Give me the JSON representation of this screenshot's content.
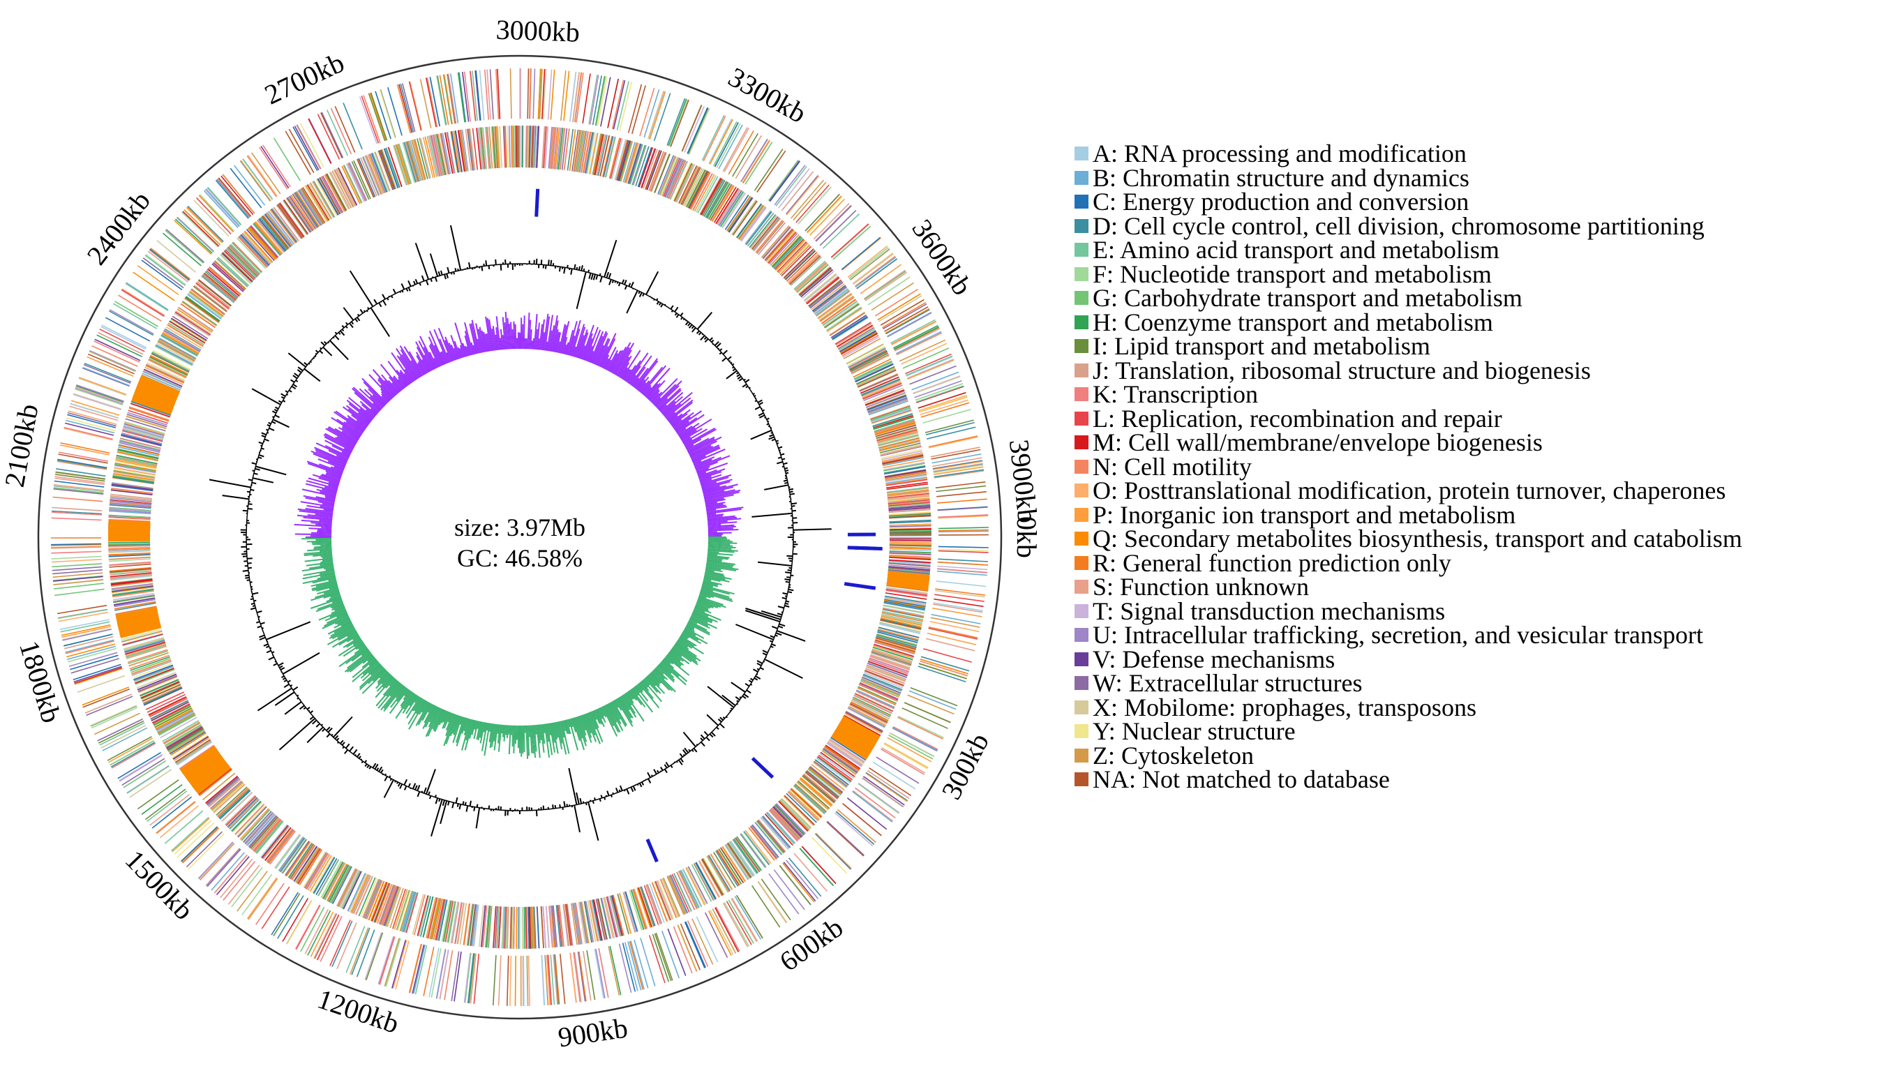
{
  "figure": {
    "genome_size_label": "size: 3.97Mb",
    "gc_label": "GC: 46.58%"
  },
  "axis": {
    "ticks": [
      {
        "kb": 0,
        "label": "0kb"
      },
      {
        "kb": 300,
        "label": "300kb"
      },
      {
        "kb": 600,
        "label": "600kb"
      },
      {
        "kb": 900,
        "label": "900kb"
      },
      {
        "kb": 1200,
        "label": "1200kb"
      },
      {
        "kb": 1500,
        "label": "1500kb"
      },
      {
        "kb": 1800,
        "label": "1800kb"
      },
      {
        "kb": 2100,
        "label": "2100kb"
      },
      {
        "kb": 2400,
        "label": "2400kb"
      },
      {
        "kb": 2700,
        "label": "2700kb"
      },
      {
        "kb": 3000,
        "label": "3000kb"
      },
      {
        "kb": 3300,
        "label": "3300kb"
      },
      {
        "kb": 3600,
        "label": "3600kb"
      },
      {
        "kb": 3900,
        "label": "3900kb"
      }
    ]
  },
  "colors": {
    "gc_skew_positive": "#9b30ff",
    "gc_skew_negative": "#3cb371",
    "gc_content": "#000000",
    "rrna": "#1a1acd",
    "axis": "#333333"
  },
  "legend": [
    {
      "code": "A",
      "label": "A: RNA processing and modification",
      "color": "#a6cee3"
    },
    {
      "code": "B",
      "label": "B: Chromatin structure and dynamics",
      "color": "#6baed6"
    },
    {
      "code": "C",
      "label": "C: Energy production and conversion",
      "color": "#2171b5"
    },
    {
      "code": "D",
      "label": "D: Cell cycle control, cell division, chromosome partitioning",
      "color": "#3a8fa0"
    },
    {
      "code": "E",
      "label": "E: Amino acid transport and metabolism",
      "color": "#74c69d"
    },
    {
      "code": "F",
      "label": "F: Nucleotide transport and metabolism",
      "color": "#a1d99b"
    },
    {
      "code": "G",
      "label": "G: Carbohydrate transport and metabolism",
      "color": "#74c476"
    },
    {
      "code": "H",
      "label": "H: Coenzyme transport and metabolism",
      "color": "#31a354"
    },
    {
      "code": "I",
      "label": "I: Lipid transport and metabolism",
      "color": "#6b8e3a"
    },
    {
      "code": "J",
      "label": "J: Translation, ribosomal structure and biogenesis",
      "color": "#d9a08c"
    },
    {
      "code": "K",
      "label": "K: Transcription",
      "color": "#f08080"
    },
    {
      "code": "L",
      "label": "L: Replication, recombination and repair",
      "color": "#e8454a"
    },
    {
      "code": "M",
      "label": "M: Cell wall/membrane/envelope biogenesis",
      "color": "#d7191c"
    },
    {
      "code": "N",
      "label": "N: Cell motility",
      "color": "#f4845f"
    },
    {
      "code": "O",
      "label": "O: Posttranslational modification, protein turnover, chaperones",
      "color": "#fdae6b"
    },
    {
      "code": "P",
      "label": "P: Inorganic ion transport and metabolism",
      "color": "#fd9e3c"
    },
    {
      "code": "Q",
      "label": "Q: Secondary metabolites biosynthesis, transport and catabolism",
      "color": "#fb8c00"
    },
    {
      "code": "R",
      "label": "R: General function prediction only",
      "color": "#f47c20"
    },
    {
      "code": "S",
      "label": "S: Function unknown",
      "color": "#e8a08a"
    },
    {
      "code": "T",
      "label": "T: Signal transduction mechanisms",
      "color": "#c9b3dd"
    },
    {
      "code": "U",
      "label": "U: Intracellular trafficking, secretion, and vesicular transport",
      "color": "#9e86c8"
    },
    {
      "code": "V",
      "label": "V: Defense mechanisms",
      "color": "#6a3d9a"
    },
    {
      "code": "W",
      "label": "W: Extracellular structures",
      "color": "#8c6ba5"
    },
    {
      "code": "X",
      "label": "X: Mobilome: prophages, transposons",
      "color": "#d6c99a"
    },
    {
      "code": "Y",
      "label": "Y: Nuclear structure",
      "color": "#f0e68c"
    },
    {
      "code": "Z",
      "label": "Z: Cytoskeleton",
      "color": "#d49a4a"
    },
    {
      "code": "NA",
      "label": "NA: Not matched to database",
      "color": "#b5562a"
    }
  ]
}
